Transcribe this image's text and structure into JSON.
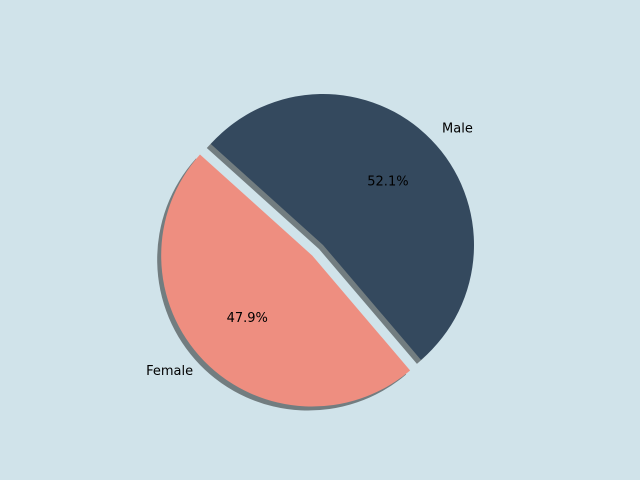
{
  "chart_data": {
    "type": "pie",
    "categories": [
      "Female",
      "Male"
    ],
    "values": [
      47.9,
      52.1
    ],
    "value_labels": [
      "47.9%",
      "52.1%"
    ],
    "colors": [
      "#ee8e80",
      "#34495e"
    ],
    "explode": [
      true,
      false
    ],
    "shadow": true
  }
}
